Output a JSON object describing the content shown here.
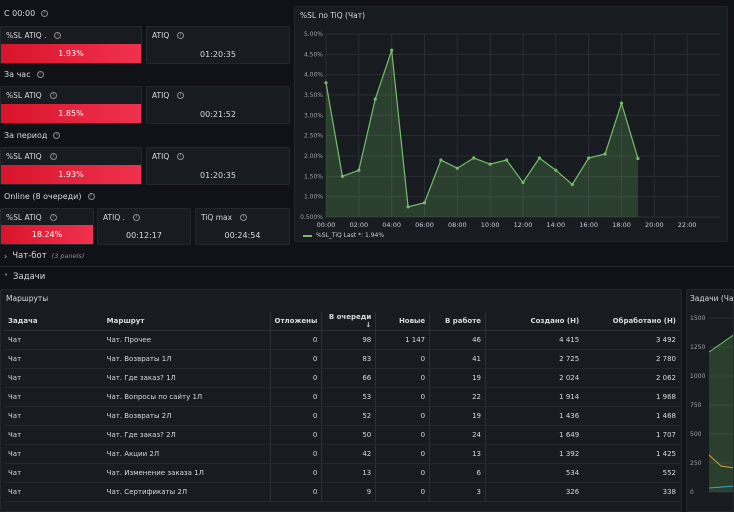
{
  "top_section": {
    "title": "С 00:00"
  },
  "hour_section": {
    "title": "За час"
  },
  "period_section": {
    "title": "За период"
  },
  "online_section": {
    "title": "Online (8 очереди)"
  },
  "stats": {
    "s1_sl_title": "%SL ATIQ .",
    "s1_sl_value": "1.93%",
    "s1_atiq_title": "ATIQ",
    "s1_atiq_value": "01:20:35",
    "s2_sl_title": "%SL ATIQ",
    "s2_sl_value": "1.85%",
    "s2_atiq_title": "ATIQ",
    "s2_atiq_value": "00:21:52",
    "s3_sl_title": "%SL ATIQ",
    "s3_sl_value": "1.93%",
    "s3_atiq_title": "ATIQ",
    "s3_atiq_value": "01:20:35",
    "s4_sl_title": "%SL ATIQ",
    "s4_sl_value": "18.24%",
    "s4_atiq_title": "ATIQ .",
    "s4_atiq_value": "00:12:17",
    "s4_tiqmax_title": "TiQ max",
    "s4_tiqmax_value": "00:24:54"
  },
  "colors": {
    "danger": "#e0182d",
    "series": "#73bf69",
    "background": "#111217",
    "panel": "#181b1f"
  },
  "chart_data": {
    "type": "area",
    "title": "%SL по TiQ (Чат)",
    "x": [
      "00:00",
      "01:00",
      "02:00",
      "03:00",
      "04:00",
      "05:00",
      "06:00",
      "07:00",
      "08:00",
      "09:00",
      "10:00",
      "11:00",
      "12:00",
      "13:00",
      "14:00",
      "15:00",
      "16:00",
      "17:00",
      "18:00",
      "19:00"
    ],
    "series": [
      {
        "name": "%SL_TiQ",
        "values": [
          3.8,
          1.5,
          1.65,
          3.4,
          4.6,
          0.75,
          0.85,
          1.9,
          1.7,
          1.95,
          1.8,
          1.9,
          1.35,
          1.95,
          1.65,
          1.3,
          1.95,
          2.05,
          3.3,
          1.94
        ]
      }
    ],
    "x_ticks": [
      "00:00",
      "02:00",
      "04:00",
      "06:00",
      "08:00",
      "10:00",
      "12:00",
      "14:00",
      "16:00",
      "18:00",
      "20:00",
      "22:00"
    ],
    "y_ticks": [
      "0.500%",
      "1.00%",
      "1.50%",
      "2.00%",
      "2.50%",
      "3.00%",
      "3.50%",
      "4.00%",
      "4.50%",
      "5.00%"
    ],
    "ylim": [
      0.5,
      5.0
    ],
    "xlim_hours": [
      0,
      24
    ],
    "legend_text": "%SL_TiQ  Last *: 1.94%",
    "grid": true
  },
  "chatbot_row": {
    "label": "Чат-бот",
    "panels": "(3 panels)"
  },
  "tasks_row": {
    "label": "Задачи"
  },
  "routes_table": {
    "title": "Маршруты",
    "columns": [
      "Задача",
      "Маршрут",
      "Отложены",
      "В очереди ↓",
      "Новые",
      "В работе",
      "Создано (Н)",
      "Обработано (Н)"
    ],
    "rows": [
      [
        "Чат",
        "Чат. Прочее",
        "0",
        "98",
        "1 147",
        "46",
        "4 415",
        "3 492"
      ],
      [
        "Чат",
        "Чат. Возвраты 1Л",
        "0",
        "83",
        "0",
        "41",
        "2 725",
        "2 780"
      ],
      [
        "Чат",
        "Чат. Где заказ? 1Л",
        "0",
        "66",
        "0",
        "19",
        "2 024",
        "2 062"
      ],
      [
        "Чат",
        "Чат. Вопросы по сайту 1Л",
        "0",
        "53",
        "0",
        "22",
        "1 914",
        "1 968"
      ],
      [
        "Чат",
        "Чат. Возвраты 2Л",
        "0",
        "52",
        "0",
        "19",
        "1 436",
        "1 468"
      ],
      [
        "Чат",
        "Чат. Где заказ? 2Л",
        "0",
        "50",
        "0",
        "24",
        "1 649",
        "1 707"
      ],
      [
        "Чат",
        "Чат. Акции 2Л",
        "0",
        "42",
        "0",
        "13",
        "1 392",
        "1 425"
      ],
      [
        "Чат",
        "Чат. Изменение заказа 1Л",
        "0",
        "13",
        "0",
        "6",
        "534",
        "552"
      ],
      [
        "Чат",
        "Чат. Сертификаты 2Л",
        "0",
        "9",
        "0",
        "3",
        "326",
        "338"
      ]
    ]
  },
  "side_panel": {
    "title": "Задачи (Чат)",
    "y_ticks": [
      "1500",
      "1250",
      "1000",
      "750",
      "500",
      "250",
      "0"
    ]
  }
}
